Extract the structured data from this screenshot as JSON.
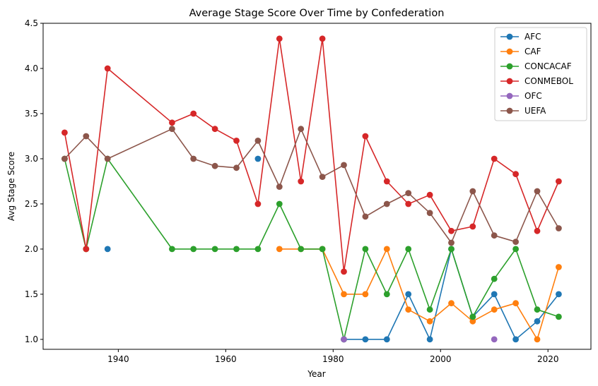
{
  "chart_data": {
    "type": "line",
    "title": "Average Stage Score Over Time by Confederation",
    "xlabel": "Year",
    "ylabel": "Avg Stage Score",
    "xlim": [
      1926,
      2028
    ],
    "ylim": [
      0.89,
      4.5
    ],
    "xticks": [
      1940,
      1960,
      1980,
      2000,
      2020
    ],
    "yticks": [
      1.0,
      1.5,
      2.0,
      2.5,
      3.0,
      3.5,
      4.0,
      4.5
    ],
    "grid": false,
    "legend_position": "top-right",
    "series": [
      {
        "name": "AFC",
        "color": "#1f77b4",
        "points": [
          [
            1938,
            2.0
          ],
          [
            null,
            null
          ],
          [
            1966,
            3.0
          ],
          [
            null,
            null
          ],
          [
            1982,
            1.0
          ],
          [
            1986,
            1.0
          ],
          [
            1990,
            1.0
          ],
          [
            1994,
            1.5
          ],
          [
            1998,
            1.0
          ],
          [
            2002,
            2.0
          ],
          [
            2006,
            1.25
          ],
          [
            2010,
            1.5
          ],
          [
            2014,
            1.0
          ],
          [
            2018,
            1.2
          ],
          [
            2022,
            1.5
          ]
        ]
      },
      {
        "name": "CAF",
        "color": "#ff7f0e",
        "points": [
          [
            1934,
            2.0
          ],
          [
            null,
            null
          ],
          [
            1970,
            2.0
          ],
          [
            1974,
            2.0
          ],
          [
            1978,
            2.0
          ],
          [
            1982,
            1.5
          ],
          [
            1986,
            1.5
          ],
          [
            1990,
            2.0
          ],
          [
            1994,
            1.33
          ],
          [
            1998,
            1.2
          ],
          [
            2002,
            1.4
          ],
          [
            2006,
            1.2
          ],
          [
            2010,
            1.33
          ],
          [
            2014,
            1.4
          ],
          [
            2018,
            1.0
          ],
          [
            2022,
            1.8
          ]
        ]
      },
      {
        "name": "CONCACAF",
        "color": "#2ca02c",
        "points": [
          [
            1930,
            3.0
          ],
          [
            1934,
            2.0
          ],
          [
            1938,
            3.0
          ],
          [
            1950,
            2.0
          ],
          [
            1954,
            2.0
          ],
          [
            1958,
            2.0
          ],
          [
            1962,
            2.0
          ],
          [
            1966,
            2.0
          ],
          [
            1970,
            2.5
          ],
          [
            1974,
            2.0
          ],
          [
            1978,
            2.0
          ],
          [
            1982,
            1.0
          ],
          [
            1986,
            2.0
          ],
          [
            1990,
            1.5
          ],
          [
            1994,
            2.0
          ],
          [
            1998,
            1.33
          ],
          [
            2002,
            2.0
          ],
          [
            2006,
            1.25
          ],
          [
            2010,
            1.67
          ],
          [
            2014,
            2.0
          ],
          [
            2018,
            1.33
          ],
          [
            2022,
            1.25
          ]
        ]
      },
      {
        "name": "CONMEBOL",
        "color": "#d62728",
        "points": [
          [
            1930,
            3.29
          ],
          [
            1934,
            2.0
          ],
          [
            1938,
            4.0
          ],
          [
            1950,
            3.4
          ],
          [
            1954,
            3.5
          ],
          [
            1958,
            3.33
          ],
          [
            1962,
            3.2
          ],
          [
            1966,
            2.5
          ],
          [
            1970,
            4.33
          ],
          [
            1974,
            2.75
          ],
          [
            1978,
            4.33
          ],
          [
            1982,
            1.75
          ],
          [
            1986,
            3.25
          ],
          [
            1990,
            2.75
          ],
          [
            1994,
            2.5
          ],
          [
            1998,
            2.6
          ],
          [
            2002,
            2.2
          ],
          [
            2006,
            2.25
          ],
          [
            2010,
            3.0
          ],
          [
            2014,
            2.83
          ],
          [
            2018,
            2.2
          ],
          [
            2022,
            2.75
          ]
        ]
      },
      {
        "name": "OFC",
        "color": "#9467bd",
        "points": [
          [
            1982,
            1.0
          ],
          [
            null,
            null
          ],
          [
            2010,
            1.0
          ]
        ]
      },
      {
        "name": "UEFA",
        "color": "#8c564b",
        "points": [
          [
            1930,
            3.0
          ],
          [
            1934,
            3.25
          ],
          [
            1938,
            3.0
          ],
          [
            1950,
            3.33
          ],
          [
            1954,
            3.0
          ],
          [
            1958,
            2.92
          ],
          [
            1962,
            2.9
          ],
          [
            1966,
            3.2
          ],
          [
            1970,
            2.69
          ],
          [
            1974,
            3.33
          ],
          [
            1978,
            2.8
          ],
          [
            1982,
            2.93
          ],
          [
            1986,
            2.36
          ],
          [
            1990,
            2.5
          ],
          [
            1994,
            2.62
          ],
          [
            1998,
            2.4
          ],
          [
            2002,
            2.07
          ],
          [
            2006,
            2.64
          ],
          [
            2010,
            2.15
          ],
          [
            2014,
            2.08
          ],
          [
            2018,
            2.64
          ],
          [
            2022,
            2.23
          ]
        ]
      }
    ]
  }
}
